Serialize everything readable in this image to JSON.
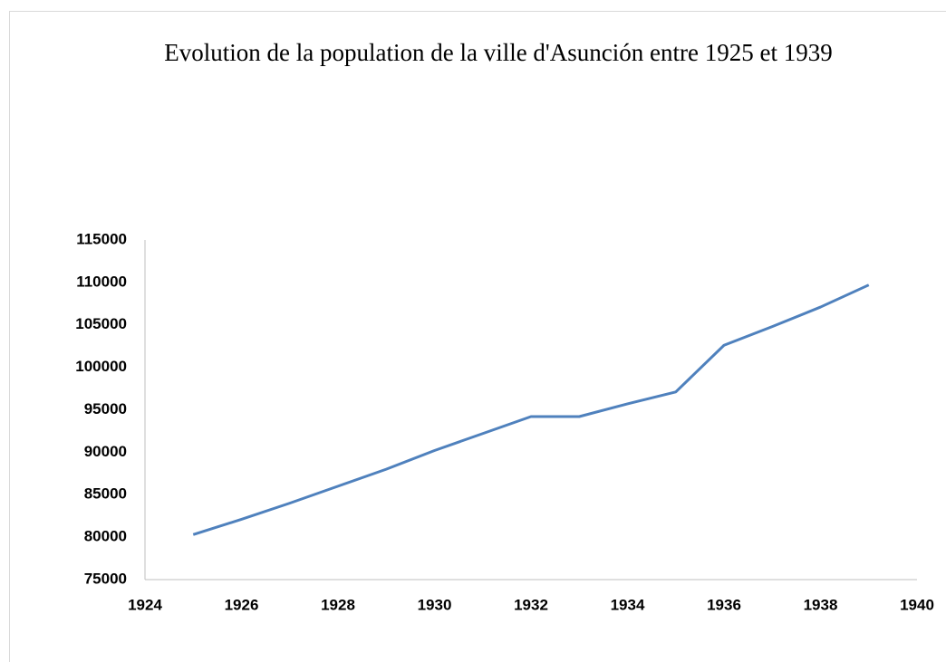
{
  "chart_data": {
    "type": "line",
    "title": "Evolution de la population de la ville d'Asunción entre 1925 et 1939",
    "x": [
      1925,
      1926,
      1927,
      1928,
      1929,
      1930,
      1931,
      1932,
      1933,
      1934,
      1935,
      1936,
      1937,
      1938,
      1939
    ],
    "series": [
      {
        "name": "Population",
        "color": "#4f81bd",
        "values": [
          80300,
          82100,
          84000,
          86000,
          88000,
          90200,
          92200,
          94200,
          94200,
          95700,
          97100,
          102600,
          104800,
          107100,
          109700
        ]
      }
    ],
    "xlim": [
      1924,
      1940
    ],
    "xticks": [
      1924,
      1926,
      1928,
      1930,
      1932,
      1934,
      1936,
      1938,
      1940
    ],
    "ylim": [
      75000,
      115000
    ],
    "yticks": [
      75000,
      80000,
      85000,
      90000,
      95000,
      100000,
      105000,
      110000,
      115000
    ],
    "grid": false,
    "legend": false
  }
}
